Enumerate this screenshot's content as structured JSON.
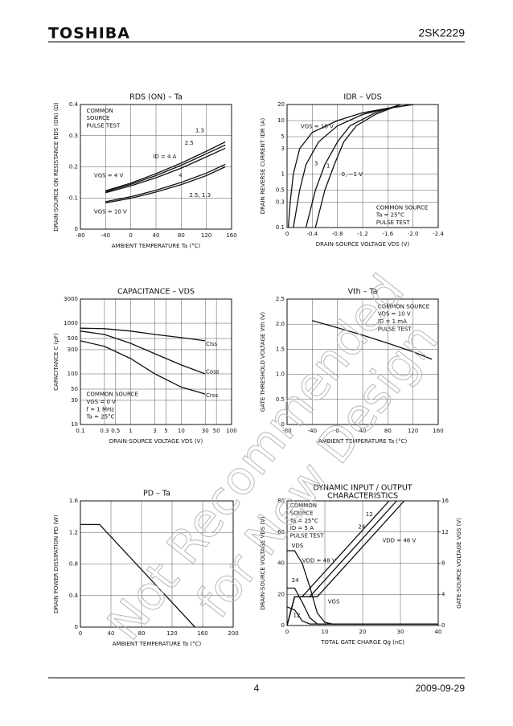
{
  "header": {
    "brand": "TOSHIBA",
    "part": "2SK2229"
  },
  "footer": {
    "page": "4",
    "date": "2009-09-29"
  },
  "watermark": [
    "Not Recommended",
    "for New Design"
  ],
  "chart_data": [
    {
      "type": "line",
      "title": "RDS (ON) – Ta",
      "x_label": "AMBIENT TEMPERATURE   Ta   (°C)",
      "y_label": "DRAIN-SOURCE ON RESISTANCE  RDS (ON)  (Ω)",
      "xlim": [
        -80,
        160
      ],
      "xticks": [
        -80,
        -40,
        0,
        40,
        80,
        120,
        160
      ],
      "ylim": [
        0,
        0.4
      ],
      "yticks": [
        0,
        0.1,
        0.2,
        0.3,
        0.4
      ],
      "grid": true,
      "color": "#111",
      "annotations": [
        "COMMON",
        "SOURCE",
        "PULSE TEST",
        "ID = 4 A",
        "VGS = 4 V",
        "VGS = 10 V",
        "1.3",
        "2.5",
        "4",
        "2.5, 1.3"
      ],
      "series": [
        {
          "x": [
            -40,
            0,
            40,
            80,
            120,
            150
          ],
          "values": [
            0.123,
            0.148,
            0.178,
            0.212,
            0.25,
            0.28
          ]
        },
        {
          "x": [
            -40,
            0,
            40,
            80,
            120,
            150
          ],
          "values": [
            0.12,
            0.144,
            0.172,
            0.205,
            0.242,
            0.27
          ]
        },
        {
          "x": [
            -40,
            0,
            40,
            80,
            120,
            150
          ],
          "values": [
            0.117,
            0.139,
            0.165,
            0.196,
            0.232,
            0.26
          ]
        },
        {
          "x": [
            -40,
            0,
            40,
            80,
            120,
            150
          ],
          "values": [
            0.088,
            0.104,
            0.125,
            0.15,
            0.18,
            0.208
          ]
        },
        {
          "x": [
            -40,
            0,
            40,
            80,
            120,
            150
          ],
          "values": [
            0.084,
            0.099,
            0.119,
            0.143,
            0.172,
            0.2
          ]
        }
      ]
    },
    {
      "type": "line",
      "title": "IDR – VDS",
      "x_label": "DRAIN-SOURCE VOLTAGE   VDS   (V)",
      "y_label": "DRAIN REVERSE CURRENT   IDR   (A)",
      "xlim": [
        0,
        -2.4
      ],
      "xticks": [
        0,
        -0.4,
        -0.8,
        -1.2,
        -1.6,
        {
          "value": -2,
          "label": "-2.0"
        },
        -2.4
      ],
      "ylim": [
        0.1,
        20
      ],
      "yticks": [
        0.1,
        0.3,
        0.5,
        1,
        3,
        5,
        10,
        20
      ],
      "ylog": true,
      "grid": true,
      "color": "#111",
      "annotations": [
        "VGS = 10 V",
        "3",
        "1",
        "0, −1 V",
        "COMMON SOURCE",
        "Ta = 25°C",
        "PULSE TEST"
      ],
      "series": [
        {
          "x": [
            -0.02,
            -0.05,
            -0.1,
            -0.2,
            -0.4,
            -0.8,
            -1.2,
            -1.6,
            -2.0
          ],
          "values": [
            0.1,
            0.3,
            1,
            3,
            6,
            10,
            14,
            17,
            20
          ]
        },
        {
          "x": [
            -0.1,
            -0.2,
            -0.3,
            -0.5,
            -0.8,
            -1.2,
            -1.6,
            -2.0
          ],
          "values": [
            0.1,
            0.5,
            1.5,
            4,
            8,
            13,
            17,
            20
          ]
        },
        {
          "x": [
            -0.3,
            -0.45,
            -0.6,
            -0.8,
            -1.0,
            -1.4,
            -1.8
          ],
          "values": [
            0.1,
            0.5,
            1.5,
            4,
            8,
            14,
            20
          ]
        },
        {
          "x": [
            -0.45,
            -0.6,
            -0.75,
            -0.9,
            -1.1,
            -1.4,
            -1.8
          ],
          "values": [
            0.1,
            0.5,
            1.5,
            4,
            8,
            13,
            20
          ]
        }
      ]
    },
    {
      "type": "line",
      "title": "CAPACITANCE – VDS",
      "x_label": "DRAIN-SOURCE VOLTAGE   VDS   (V)",
      "y_label": "CAPACITANCE   C   (pF)",
      "xlim": [
        0.1,
        100
      ],
      "xticks": [
        0.1,
        0.3,
        0.5,
        1,
        3,
        5,
        10,
        30,
        50,
        100
      ],
      "xlog": true,
      "ylim": [
        10,
        3000
      ],
      "yticks": [
        10,
        30,
        50,
        100,
        300,
        500,
        1000,
        3000
      ],
      "ylog": true,
      "grid": true,
      "color": "#111",
      "annotations": [
        "Ciss",
        "Coss",
        "Crss",
        "COMMON SOURCE",
        "VGS = 0 V",
        "f = 1 MHz",
        "Ta = 25°C"
      ],
      "series": [
        {
          "x": [
            0.1,
            0.3,
            1,
            3,
            10,
            30
          ],
          "values": [
            800,
            780,
            700,
            600,
            520,
            450
          ]
        },
        {
          "x": [
            0.1,
            0.3,
            1,
            3,
            10,
            30
          ],
          "values": [
            700,
            600,
            400,
            250,
            150,
            100
          ]
        },
        {
          "x": [
            0.1,
            0.3,
            1,
            3,
            10,
            30
          ],
          "values": [
            450,
            350,
            200,
            100,
            55,
            40
          ]
        }
      ]
    },
    {
      "type": "line",
      "title": "Vth – Ta",
      "x_label": "AMBIENT TEMPERATURE   Ta   (°C)",
      "y_label": "GATE THRESHOLD VOLTAGE   Vth   (V)",
      "xlim": [
        -80,
        160
      ],
      "xticks": [
        -80,
        -40,
        0,
        40,
        80,
        120,
        160
      ],
      "ylim": [
        0,
        2.5
      ],
      "yticks": [
        0,
        0.5,
        {
          "value": 1,
          "label": "1.0"
        },
        1.5,
        {
          "value": 2,
          "label": "2.0"
        },
        2.5
      ],
      "grid": true,
      "color": "#111",
      "annotations": [
        "COMMON SOURCE",
        "VDS = 10 V",
        "ID = 1 mA",
        "PULSE TEST"
      ],
      "series": [
        {
          "x": [
            -40,
            0,
            40,
            80,
            120,
            150
          ],
          "values": [
            2.07,
            1.93,
            1.78,
            1.62,
            1.45,
            1.3
          ]
        }
      ]
    },
    {
      "type": "line",
      "title": "PD – Ta",
      "x_label": "AMBIENT TEMPERATURE   Ta   (°C)",
      "y_label": "DRAIN POWER DISSIPATION   PD   (W)",
      "xlim": [
        0,
        200
      ],
      "xticks": [
        0,
        40,
        80,
        120,
        160,
        200
      ],
      "ylim": [
        0,
        1.6
      ],
      "yticks": [
        0,
        0.4,
        0.8,
        1.2,
        1.6
      ],
      "grid": true,
      "color": "#111",
      "annotations": [],
      "series": [
        {
          "x": [
            0,
            25,
            150
          ],
          "values": [
            1.3,
            1.3,
            0
          ]
        }
      ]
    },
    {
      "type": "line",
      "title": "DYNAMIC INPUT / OUTPUT",
      "subtitle": "CHARACTERISTICS",
      "x_label": "TOTAL GATE CHARGE   Qg   (nC)",
      "y_label": "DRAIN-SOURCE VOLTAGE   VDS   (V)",
      "y2_label": "GATE-SOURCE VOLTAGE   VGS   (V)",
      "xlim": [
        0,
        40
      ],
      "xticks": [
        0,
        10,
        20,
        30,
        40
      ],
      "ylim": [
        0,
        80
      ],
      "yticks": [
        0,
        20,
        40,
        60,
        80
      ],
      "y2lim": [
        0,
        16
      ],
      "y2ticks": [
        0,
        4,
        8,
        12,
        16
      ],
      "grid": true,
      "color": "#111",
      "annotations": [
        "COMMON",
        "SOURCE",
        "Ta = 25°C",
        "ID = 5 A",
        "PULSE TEST",
        "12",
        "24",
        "VDD = 48 V",
        "VDS",
        "VDD = 48 V",
        "24",
        "12",
        "VGS"
      ],
      "series": [
        {
          "x": [
            0,
            2,
            4,
            6,
            8,
            10,
            12,
            40
          ],
          "values": [
            48,
            48,
            40,
            25,
            8,
            2,
            1,
            1
          ]
        },
        {
          "x": [
            0,
            2,
            4,
            6,
            8,
            40
          ],
          "values": [
            24,
            24,
            15,
            5,
            1,
            1
          ]
        },
        {
          "x": [
            0,
            2,
            4,
            6,
            40
          ],
          "values": [
            12,
            10,
            3,
            1,
            1
          ]
        },
        {
          "x": [
            0,
            2,
            4,
            27
          ],
          "values": [
            0,
            3.7,
            3.7,
            16
          ],
          "axis": "y2"
        },
        {
          "x": [
            0,
            2,
            6,
            29
          ],
          "values": [
            0,
            3.7,
            3.7,
            16
          ],
          "axis": "y2"
        },
        {
          "x": [
            0,
            2,
            8,
            31
          ],
          "values": [
            0,
            3.7,
            3.7,
            16
          ],
          "axis": "y2"
        }
      ]
    }
  ]
}
